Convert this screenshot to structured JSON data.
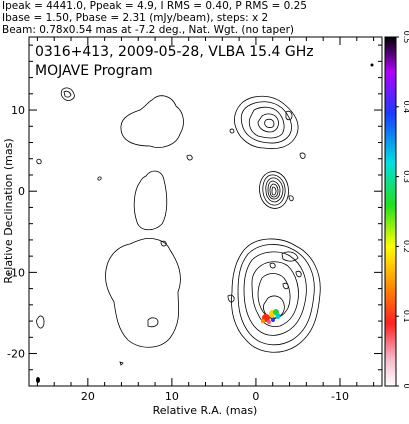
{
  "header": {
    "line1": "Ipeak = 4441.0, Ppeak = 4.9, I RMS = 0.40, P RMS = 0.25",
    "line2": "Ibase = 1.50, Pbase = 2.31 (mJy/beam), steps: x 2",
    "line3": "Beam: 0.78x0.54 mas at -7.2 deg., Nat. Wgt. (no taper)"
  },
  "chart_data": {
    "type": "contour",
    "title": "0316+413, 2009-05-28, VLBA 15.4 GHz",
    "subtitle": "MOJAVE Program",
    "xlabel": "Relative R.A. (mas)",
    "ylabel": "Relative Declination (mas)",
    "xlim": [
      27,
      -15
    ],
    "ylim": [
      -24,
      19
    ],
    "x_ticks": [
      20,
      10,
      0,
      -10
    ],
    "y_ticks": [
      10,
      0,
      -10,
      -20
    ],
    "colorbar": {
      "range": [
        0,
        0.5
      ],
      "ticks": [
        0,
        0.1,
        0.2,
        0.3,
        0.4,
        0.5
      ],
      "tick_labels": [
        "0",
        "0.1",
        "0.2",
        "0.3",
        "0.4",
        "0.5"
      ]
    },
    "core": {
      "x": 0,
      "y": 0,
      "peak_mJy_per_beam": 4441.0
    }
  }
}
